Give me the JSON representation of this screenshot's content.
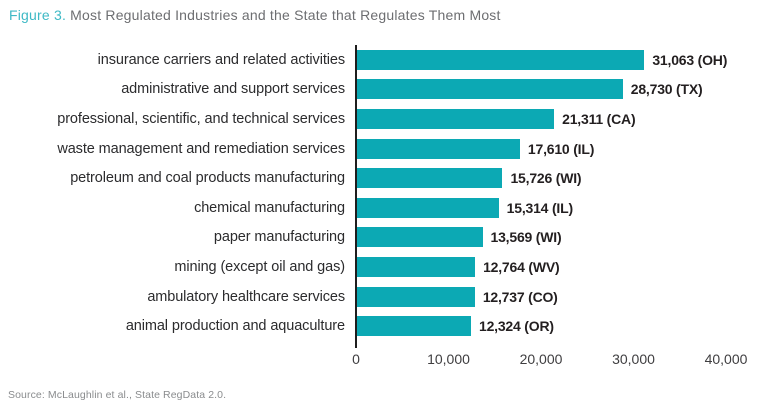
{
  "title": {
    "prefix": "Figure 3.",
    "rest": " Most Regulated Industries and the State that Regulates Them Most"
  },
  "source": "Source: McLaughlin et al., State RegData 2.0.",
  "colors": {
    "bar": "#0ca9b4",
    "title_accent": "#3eb9c5",
    "title_text": "#6d6e71",
    "axis_line": "#1e1e1e"
  },
  "chart_data": {
    "type": "bar",
    "orientation": "horizontal",
    "title": "Most Regulated Industries and the State that Regulates Them Most",
    "categories": [
      "insurance carriers and related activities",
      "administrative and support services",
      "professional, scientific, and technical services",
      "waste management and remediation services",
      "petroleum and coal products manufacturing",
      "chemical manufacturing",
      "paper manufacturing",
      "mining (except oil and gas)",
      "ambulatory healthcare services",
      "animal production and aquaculture"
    ],
    "values": [
      31063,
      28730,
      21311,
      17610,
      15726,
      15314,
      13569,
      12764,
      12737,
      12324
    ],
    "value_labels": [
      "31,063 (OH)",
      "28,730 (TX)",
      "21,311 (CA)",
      "17,610 (IL)",
      "15,726 (WI)",
      "15,314 (IL)",
      "13,569 (WI)",
      "12,764 (WV)",
      "12,737 (CO)",
      "12,324 (OR)"
    ],
    "states": [
      "OH",
      "TX",
      "CA",
      "IL",
      "WI",
      "IL",
      "WI",
      "WV",
      "CO",
      "OR"
    ],
    "xlim": [
      0,
      40000
    ],
    "xticks": [
      "0",
      "10,000",
      "20,000",
      "30,000",
      "40,000"
    ],
    "xtick_values": [
      0,
      10000,
      20000,
      30000,
      40000
    ],
    "grid": false,
    "legend": false,
    "bar_color": "#0ca9b4"
  }
}
